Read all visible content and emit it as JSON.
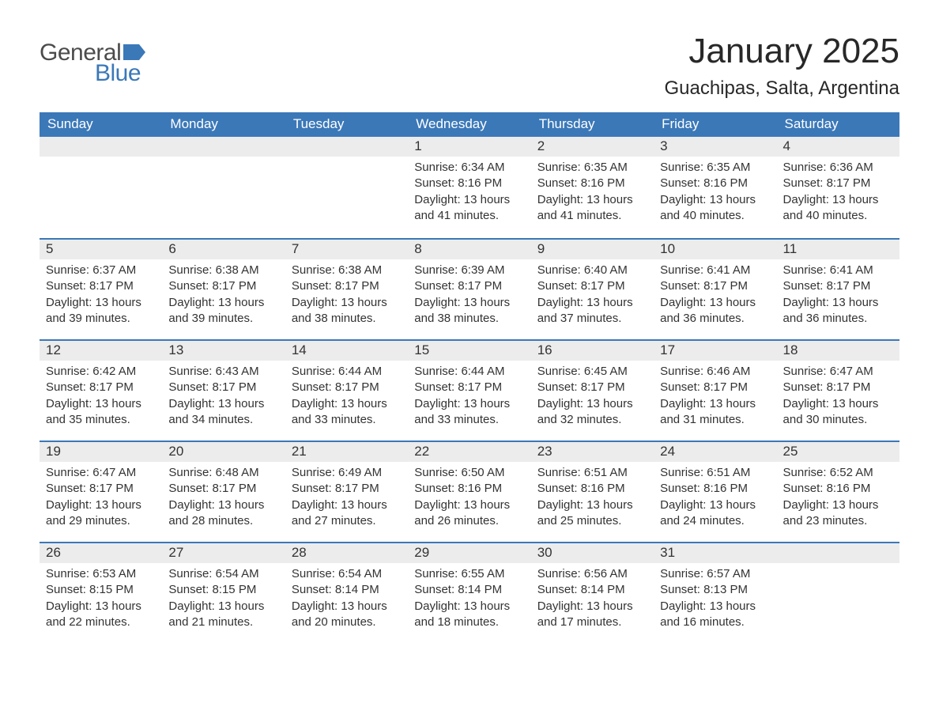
{
  "logo": {
    "word1": "General",
    "word2": "Blue",
    "flag_color": "#3b78b8",
    "text_gray": "#4b4b4b"
  },
  "header": {
    "month_title": "January 2025",
    "location": "Guachipas, Salta, Argentina"
  },
  "styling": {
    "header_bg": "#3b78b8",
    "header_text": "#ffffff",
    "daynum_bg": "#ececec",
    "row_border": "#3b78b8",
    "body_text": "#333333",
    "page_bg": "#ffffff",
    "th_fontsize": 17,
    "daynum_fontsize": 17,
    "body_fontsize": 15,
    "title_fontsize": 44,
    "location_fontsize": 24
  },
  "weekdays": [
    "Sunday",
    "Monday",
    "Tuesday",
    "Wednesday",
    "Thursday",
    "Friday",
    "Saturday"
  ],
  "weeks": [
    [
      null,
      null,
      null,
      {
        "n": "1",
        "sunrise": "Sunrise: 6:34 AM",
        "sunset": "Sunset: 8:16 PM",
        "day1": "Daylight: 13 hours",
        "day2": "and 41 minutes."
      },
      {
        "n": "2",
        "sunrise": "Sunrise: 6:35 AM",
        "sunset": "Sunset: 8:16 PM",
        "day1": "Daylight: 13 hours",
        "day2": "and 41 minutes."
      },
      {
        "n": "3",
        "sunrise": "Sunrise: 6:35 AM",
        "sunset": "Sunset: 8:16 PM",
        "day1": "Daylight: 13 hours",
        "day2": "and 40 minutes."
      },
      {
        "n": "4",
        "sunrise": "Sunrise: 6:36 AM",
        "sunset": "Sunset: 8:17 PM",
        "day1": "Daylight: 13 hours",
        "day2": "and 40 minutes."
      }
    ],
    [
      {
        "n": "5",
        "sunrise": "Sunrise: 6:37 AM",
        "sunset": "Sunset: 8:17 PM",
        "day1": "Daylight: 13 hours",
        "day2": "and 39 minutes."
      },
      {
        "n": "6",
        "sunrise": "Sunrise: 6:38 AM",
        "sunset": "Sunset: 8:17 PM",
        "day1": "Daylight: 13 hours",
        "day2": "and 39 minutes."
      },
      {
        "n": "7",
        "sunrise": "Sunrise: 6:38 AM",
        "sunset": "Sunset: 8:17 PM",
        "day1": "Daylight: 13 hours",
        "day2": "and 38 minutes."
      },
      {
        "n": "8",
        "sunrise": "Sunrise: 6:39 AM",
        "sunset": "Sunset: 8:17 PM",
        "day1": "Daylight: 13 hours",
        "day2": "and 38 minutes."
      },
      {
        "n": "9",
        "sunrise": "Sunrise: 6:40 AM",
        "sunset": "Sunset: 8:17 PM",
        "day1": "Daylight: 13 hours",
        "day2": "and 37 minutes."
      },
      {
        "n": "10",
        "sunrise": "Sunrise: 6:41 AM",
        "sunset": "Sunset: 8:17 PM",
        "day1": "Daylight: 13 hours",
        "day2": "and 36 minutes."
      },
      {
        "n": "11",
        "sunrise": "Sunrise: 6:41 AM",
        "sunset": "Sunset: 8:17 PM",
        "day1": "Daylight: 13 hours",
        "day2": "and 36 minutes."
      }
    ],
    [
      {
        "n": "12",
        "sunrise": "Sunrise: 6:42 AM",
        "sunset": "Sunset: 8:17 PM",
        "day1": "Daylight: 13 hours",
        "day2": "and 35 minutes."
      },
      {
        "n": "13",
        "sunrise": "Sunrise: 6:43 AM",
        "sunset": "Sunset: 8:17 PM",
        "day1": "Daylight: 13 hours",
        "day2": "and 34 minutes."
      },
      {
        "n": "14",
        "sunrise": "Sunrise: 6:44 AM",
        "sunset": "Sunset: 8:17 PM",
        "day1": "Daylight: 13 hours",
        "day2": "and 33 minutes."
      },
      {
        "n": "15",
        "sunrise": "Sunrise: 6:44 AM",
        "sunset": "Sunset: 8:17 PM",
        "day1": "Daylight: 13 hours",
        "day2": "and 33 minutes."
      },
      {
        "n": "16",
        "sunrise": "Sunrise: 6:45 AM",
        "sunset": "Sunset: 8:17 PM",
        "day1": "Daylight: 13 hours",
        "day2": "and 32 minutes."
      },
      {
        "n": "17",
        "sunrise": "Sunrise: 6:46 AM",
        "sunset": "Sunset: 8:17 PM",
        "day1": "Daylight: 13 hours",
        "day2": "and 31 minutes."
      },
      {
        "n": "18",
        "sunrise": "Sunrise: 6:47 AM",
        "sunset": "Sunset: 8:17 PM",
        "day1": "Daylight: 13 hours",
        "day2": "and 30 minutes."
      }
    ],
    [
      {
        "n": "19",
        "sunrise": "Sunrise: 6:47 AM",
        "sunset": "Sunset: 8:17 PM",
        "day1": "Daylight: 13 hours",
        "day2": "and 29 minutes."
      },
      {
        "n": "20",
        "sunrise": "Sunrise: 6:48 AM",
        "sunset": "Sunset: 8:17 PM",
        "day1": "Daylight: 13 hours",
        "day2": "and 28 minutes."
      },
      {
        "n": "21",
        "sunrise": "Sunrise: 6:49 AM",
        "sunset": "Sunset: 8:17 PM",
        "day1": "Daylight: 13 hours",
        "day2": "and 27 minutes."
      },
      {
        "n": "22",
        "sunrise": "Sunrise: 6:50 AM",
        "sunset": "Sunset: 8:16 PM",
        "day1": "Daylight: 13 hours",
        "day2": "and 26 minutes."
      },
      {
        "n": "23",
        "sunrise": "Sunrise: 6:51 AM",
        "sunset": "Sunset: 8:16 PM",
        "day1": "Daylight: 13 hours",
        "day2": "and 25 minutes."
      },
      {
        "n": "24",
        "sunrise": "Sunrise: 6:51 AM",
        "sunset": "Sunset: 8:16 PM",
        "day1": "Daylight: 13 hours",
        "day2": "and 24 minutes."
      },
      {
        "n": "25",
        "sunrise": "Sunrise: 6:52 AM",
        "sunset": "Sunset: 8:16 PM",
        "day1": "Daylight: 13 hours",
        "day2": "and 23 minutes."
      }
    ],
    [
      {
        "n": "26",
        "sunrise": "Sunrise: 6:53 AM",
        "sunset": "Sunset: 8:15 PM",
        "day1": "Daylight: 13 hours",
        "day2": "and 22 minutes."
      },
      {
        "n": "27",
        "sunrise": "Sunrise: 6:54 AM",
        "sunset": "Sunset: 8:15 PM",
        "day1": "Daylight: 13 hours",
        "day2": "and 21 minutes."
      },
      {
        "n": "28",
        "sunrise": "Sunrise: 6:54 AM",
        "sunset": "Sunset: 8:14 PM",
        "day1": "Daylight: 13 hours",
        "day2": "and 20 minutes."
      },
      {
        "n": "29",
        "sunrise": "Sunrise: 6:55 AM",
        "sunset": "Sunset: 8:14 PM",
        "day1": "Daylight: 13 hours",
        "day2": "and 18 minutes."
      },
      {
        "n": "30",
        "sunrise": "Sunrise: 6:56 AM",
        "sunset": "Sunset: 8:14 PM",
        "day1": "Daylight: 13 hours",
        "day2": "and 17 minutes."
      },
      {
        "n": "31",
        "sunrise": "Sunrise: 6:57 AM",
        "sunset": "Sunset: 8:13 PM",
        "day1": "Daylight: 13 hours",
        "day2": "and 16 minutes."
      },
      null
    ]
  ]
}
